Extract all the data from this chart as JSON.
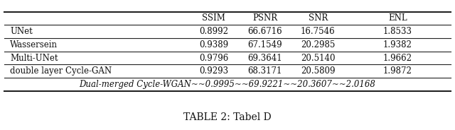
{
  "title": "TABLE 2: Tabel D",
  "columns": [
    "",
    "SSIM",
    "PSNR",
    "SNR",
    "ENL"
  ],
  "rows": [
    [
      "UNet",
      "0.8992",
      "66.6716",
      "16.7546",
      "1.8533"
    ],
    [
      "Wassersein",
      "0.9389",
      "67.1549",
      "20.2985",
      "1.9382"
    ],
    [
      "Multi-UNet",
      "0.9796",
      "69.3641",
      "20.5140",
      "1.9662"
    ],
    [
      "double layer Cycle-GAN",
      "0.9293",
      "68.3171",
      "20.5809",
      "1.9872"
    ]
  ],
  "last_row_text": "Dual-merged Cycle-WGAN~~0.9995~~69.9221~~20.3607~~2.0168",
  "fig_width": 6.4,
  "fig_height": 1.84,
  "dpi": 100,
  "background_color": "#ffffff",
  "line_color": "#222222",
  "text_color": "#111111",
  "font_size": 8.5,
  "title_font_size": 10
}
